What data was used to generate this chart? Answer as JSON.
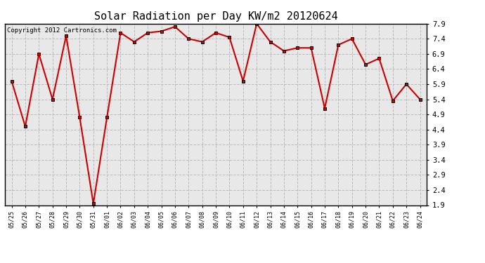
{
  "title": "Solar Radiation per Day KW/m2 20120624",
  "copyright_text": "Copyright 2012 Cartronics.com",
  "x_labels": [
    "05/25",
    "05/26",
    "05/27",
    "05/28",
    "05/29",
    "05/30",
    "05/31",
    "06/01",
    "06/02",
    "06/03",
    "06/04",
    "06/05",
    "06/06",
    "06/07",
    "06/08",
    "06/09",
    "06/10",
    "06/11",
    "06/12",
    "06/13",
    "06/14",
    "06/15",
    "06/16",
    "06/17",
    "06/18",
    "06/19",
    "06/20",
    "06/21",
    "06/22",
    "06/23",
    "06/24"
  ],
  "y_values": [
    6.0,
    4.5,
    6.9,
    5.4,
    7.5,
    4.8,
    1.95,
    4.8,
    7.6,
    7.3,
    7.6,
    7.65,
    7.8,
    7.4,
    7.3,
    7.6,
    7.45,
    6.0,
    7.9,
    7.3,
    7.0,
    7.1,
    7.1,
    5.1,
    7.2,
    7.4,
    6.55,
    6.75,
    5.35,
    5.9,
    5.4
  ],
  "line_color": "#cc0000",
  "marker_color": "#000000",
  "bg_color": "#ffffff",
  "plot_bg_color": "#e8e8e8",
  "grid_color": "#bbbbbb",
  "ylim_min": 1.9,
  "ylim_max": 7.9,
  "yticks": [
    1.9,
    2.4,
    2.9,
    3.4,
    3.9,
    4.4,
    4.9,
    5.4,
    5.9,
    6.4,
    6.9,
    7.4,
    7.9
  ],
  "title_fontsize": 11,
  "copyright_fontsize": 6.5
}
